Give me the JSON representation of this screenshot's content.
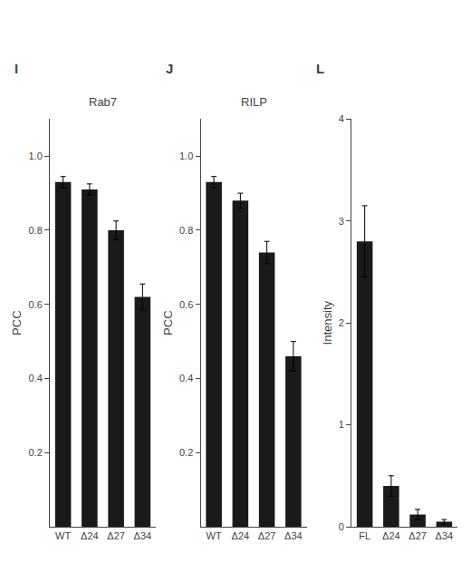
{
  "chart_data": [
    {
      "type": "bar",
      "title": "Rab7",
      "ylabel": "PCC",
      "categories": [
        "WT",
        "Δ24",
        "Δ27",
        "Δ34"
      ],
      "values": [
        0.93,
        0.91,
        0.8,
        0.62
      ],
      "errors": [
        0.015,
        0.015,
        0.025,
        0.035
      ],
      "color": "#1a1a1a",
      "ylim": [
        0,
        1.1
      ],
      "yticks": [
        0.2,
        0.4,
        0.6,
        0.8,
        {
          "value": 1.0,
          "label": "1.0"
        }
      ],
      "grid": false,
      "annotations": [
        {
          "text": "I"
        }
      ]
    },
    {
      "type": "bar",
      "title": "RILP",
      "ylabel": "PCC",
      "categories": [
        "WT",
        "Δ24",
        "Δ27",
        "Δ34"
      ],
      "values": [
        0.93,
        0.88,
        0.74,
        0.46
      ],
      "errors": [
        0.015,
        0.02,
        0.03,
        0.04
      ],
      "color": "#1a1a1a",
      "ylim": [
        0,
        1.1
      ],
      "yticks": [
        0.2,
        0.4,
        0.6,
        0.8,
        {
          "value": 1.0,
          "label": "1.0"
        }
      ],
      "grid": false,
      "annotations": [
        {
          "text": "J"
        }
      ]
    },
    {
      "type": "bar",
      "ylabel": "Intensity",
      "categories": [
        "FL",
        "Δ24",
        "Δ27",
        "Δ34"
      ],
      "values": [
        2.8,
        0.4,
        0.12,
        0.05
      ],
      "errors": [
        0.35,
        0.1,
        0.05,
        0.02
      ],
      "color": "#1a1a1a",
      "ylim": [
        0,
        4
      ],
      "yticks": [
        0,
        1,
        2,
        3,
        4
      ],
      "grid": false,
      "annotations": [
        {
          "text": "L"
        }
      ]
    }
  ]
}
